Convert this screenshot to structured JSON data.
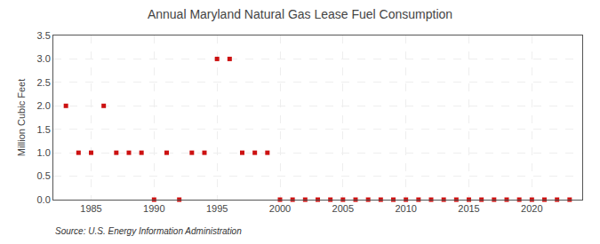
{
  "chart_data": {
    "type": "scatter",
    "title": "Annual Maryland Natural Gas Lease Fuel Consumption",
    "ylabel": "Million Cubic Feet",
    "annotations": [
      "Source: U.S. Energy Information Administration"
    ],
    "color": "#cc1111",
    "marker": "square",
    "grid": true,
    "xlim": [
      1982,
      2024
    ],
    "ylim": [
      0,
      3.5
    ],
    "xticks": [
      1985,
      1990,
      1995,
      2000,
      2005,
      2010,
      2015,
      2020
    ],
    "yticks": [
      {
        "value": 0,
        "label": "0.0"
      },
      0.5,
      {
        "value": 1,
        "label": "1.0"
      },
      1.5,
      {
        "value": 2,
        "label": "2.0"
      },
      2.5,
      {
        "value": 3,
        "label": "3.0"
      },
      3.5
    ],
    "x": [
      1983,
      1984,
      1985,
      1986,
      1987,
      1988,
      1989,
      1990,
      1991,
      1992,
      1993,
      1994,
      1995,
      1996,
      1997,
      1998,
      1999,
      2000,
      2001,
      2002,
      2003,
      2004,
      2005,
      2006,
      2007,
      2008,
      2009,
      2010,
      2011,
      2012,
      2013,
      2014,
      2015,
      2016,
      2017,
      2018,
      2019,
      2020,
      2021,
      2022,
      2023
    ],
    "values": [
      2.0,
      1.0,
      1.0,
      2.0,
      1.0,
      1.0,
      1.0,
      0.0,
      1.0,
      0.0,
      1.0,
      1.0,
      3.0,
      3.0,
      1.0,
      1.0,
      1.0,
      0.0,
      0.0,
      0.0,
      0.0,
      0.0,
      0.0,
      0.0,
      0.0,
      0.0,
      0.0,
      0.0,
      0.0,
      0.0,
      0.0,
      0.0,
      0.0,
      0.0,
      0.0,
      0.0,
      0.0,
      0.0,
      0.0,
      0.0,
      0.0
    ]
  }
}
